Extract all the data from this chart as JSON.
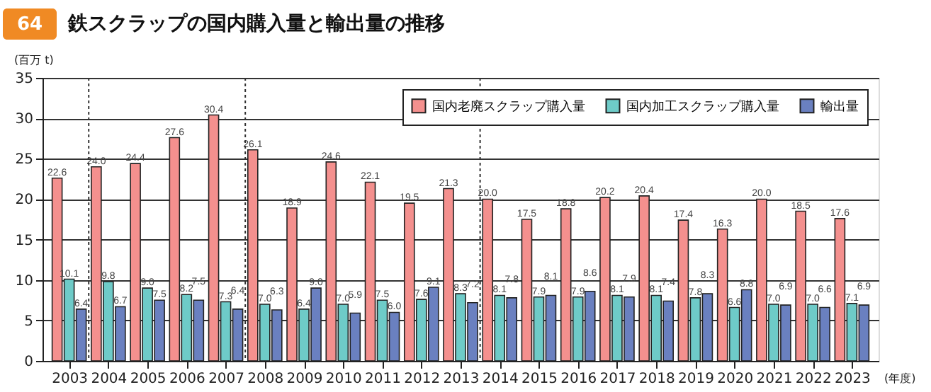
{
  "chart_data": {
    "type": "bar",
    "title": "鉄スクラップの国内購入量と輸出量の推移",
    "ylabel": "(百万 t)",
    "xlabel": "(年度)",
    "annotations": [
      "64"
    ],
    "x": [
      2003,
      2004,
      2005,
      2006,
      2007,
      2008,
      2009,
      2010,
      2011,
      2012,
      2013,
      2014,
      2015,
      2016,
      2017,
      2018,
      2019,
      2020,
      2021,
      2022,
      2023
    ],
    "xlim": [
      2002.5,
      2023.5
    ],
    "xticks": [
      2003,
      2004,
      2005,
      2006,
      2007,
      2008,
      2009,
      2010,
      2011,
      2012,
      2013,
      2014,
      2015,
      2016,
      2017,
      2018,
      2019,
      2020,
      2021,
      2022,
      2023
    ],
    "ylim": [
      0,
      35
    ],
    "yticks": [
      0,
      5,
      10,
      15,
      20,
      25,
      30,
      35
    ],
    "series": [
      {
        "name": "国内老廃スクラップ購入量",
        "color": "#f4908e",
        "values": [
          22.6,
          24.0,
          24.4,
          27.6,
          30.4,
          26.1,
          18.9,
          24.6,
          22.1,
          19.5,
          21.3,
          20.0,
          17.5,
          18.8,
          20.2,
          20.4,
          17.4,
          16.3,
          20.0,
          18.5,
          17.6
        ],
        "value_labels": [
          "22.6",
          "24.0",
          "24.4",
          "27.6",
          "30.4",
          "26.1",
          "18.9",
          "24.6",
          "22.1",
          "19.5",
          "21.3",
          "20.0",
          "17.5",
          "18.8",
          "20.2",
          "20.4",
          "17.4",
          "16.3",
          "20.0",
          "18.5",
          "17.6"
        ]
      },
      {
        "name": "国内加工スクラップ購入量",
        "color": "#6ecbc8",
        "values": [
          10.1,
          9.8,
          9.0,
          8.2,
          7.3,
          7.0,
          6.4,
          7.0,
          7.5,
          7.6,
          8.3,
          8.1,
          7.9,
          7.9,
          8.1,
          8.1,
          7.8,
          6.6,
          7.0,
          7.0,
          7.1
        ],
        "value_labels": [
          "10.1",
          "9.8",
          "9.0",
          "8.2",
          "7.3",
          "7.0",
          "6.4",
          "7.0",
          "7.5",
          "7.6",
          "8.3",
          "8.1",
          "7.9",
          "7.9",
          "8.1",
          "8.1",
          "7.8",
          "6.6",
          "7.0",
          "7.0",
          "7.1"
        ]
      },
      {
        "name": "輸出量",
        "color": "#6a80c0",
        "values": [
          6.4,
          6.7,
          7.5,
          7.5,
          6.4,
          6.3,
          9.0,
          5.9,
          6.0,
          9.1,
          7.2,
          7.8,
          8.1,
          8.6,
          7.9,
          7.4,
          8.3,
          8.8,
          6.9,
          6.6,
          6.9
        ],
        "value_labels": [
          "6.4",
          "6.7",
          "7.5",
          "7.5",
          "6.4",
          "6.3",
          "9.0",
          "5.9",
          "6.0",
          "9.1",
          "7.2",
          "7.8",
          "8.1",
          "8.6",
          "7.9",
          "7.4",
          "8.3",
          "8.8",
          "6.9",
          "6.6",
          "6.9"
        ]
      }
    ],
    "ref_lines": [
      {
        "axis": "x",
        "value": 2003.5,
        "line_style": "dotted",
        "color": "#333333"
      },
      {
        "axis": "x",
        "value": 2007.5,
        "line_style": "dotted",
        "color": "#333333"
      },
      {
        "axis": "x",
        "value": 2013.5,
        "line_style": "dotted",
        "color": "#333333"
      }
    ],
    "grid": "y",
    "legend": "top right"
  }
}
